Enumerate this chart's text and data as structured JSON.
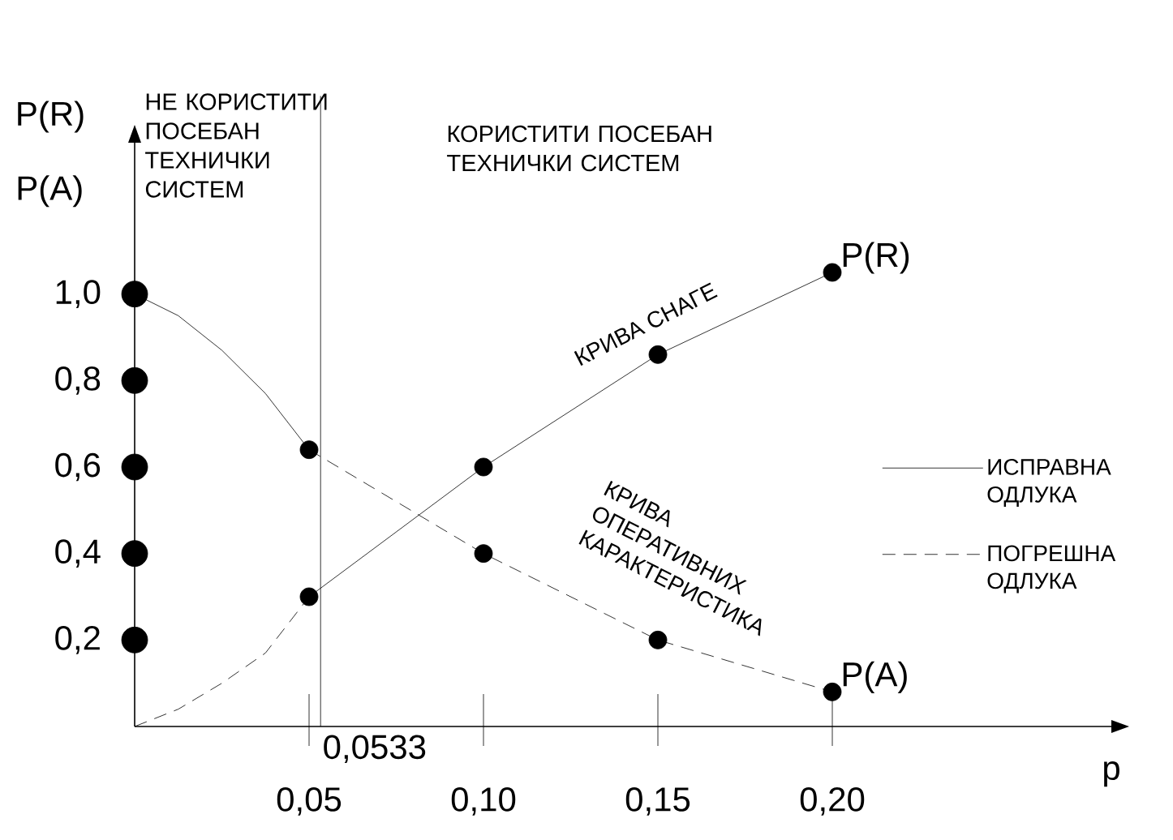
{
  "chart_data": {
    "type": "line",
    "xlabel": "p",
    "ylabel": "P(R)",
    "xlim": [
      0,
      0.28
    ],
    "ylim": [
      0,
      1.35
    ],
    "xticks": [
      {
        "value": 0.05,
        "label": "0,05"
      },
      {
        "value": 0.1,
        "label": "0,10"
      },
      {
        "value": 0.15,
        "label": "0,15"
      },
      {
        "value": 0.2,
        "label": "0,20"
      }
    ],
    "yticks": [
      {
        "value": 0.2,
        "label": "0,2"
      },
      {
        "value": 0.4,
        "label": "0,4"
      },
      {
        "value": 0.6,
        "label": "0,6"
      },
      {
        "value": 0.8,
        "label": "0,8"
      },
      {
        "value": 1.0,
        "label": "1,0"
      }
    ],
    "legend": "right",
    "ref_lines": [
      {
        "axis": "x",
        "value": 0.0533,
        "label": "0,0533",
        "color": "#000000"
      }
    ],
    "series": [
      {
        "name": "ИСПРАВНА ОДЛУКА",
        "color": "#000000",
        "line_style": "solid",
        "marker": "none",
        "x": [
          0,
          0.0125,
          0.025,
          0.0375,
          0.05
        ],
        "values": [
          1.0,
          0.95,
          0.87,
          0.77,
          0.64
        ]
      },
      {
        "color": "#000000",
        "line_style": "solid",
        "marker": "circle",
        "x": [
          0.05,
          0.1,
          0.15,
          0.2
        ],
        "values": [
          0.3,
          0.6,
          0.86,
          1.05
        ]
      },
      {
        "name": "ПОГРЕШНА ОДЛУКА",
        "color": "#000000",
        "line_style": "dashed",
        "marker": "none",
        "x": [
          0,
          0.0125,
          0.025,
          0.0375,
          0.05
        ],
        "values": [
          0,
          0.04,
          0.1,
          0.17,
          0.3
        ]
      },
      {
        "color": "#000000",
        "line_style": "dashed",
        "marker": "circle",
        "x": [
          0.05,
          0.1,
          0.15,
          0.2
        ],
        "values": [
          0.64,
          0.4,
          0.2,
          0.08
        ]
      },
      {
        "type": "scatter",
        "color": "#000000",
        "marker": "circle",
        "x": [
          0,
          0,
          0,
          0,
          0
        ],
        "values": [
          0.2,
          0.4,
          0.6,
          0.8,
          1.0
        ]
      }
    ],
    "annotations": [
      "P(A)",
      "НЕ КОРИСТИТИ ПОСЕБАН ТЕХНИЧКИ СИСТЕМ",
      "КОРИСТИТИ ПОСЕБАН ТЕХНИЧКИ СИСТЕМ",
      "КРИВА СНАГЕ",
      "КРИВА ОПЕРАТИВНИХ КАРАКТЕРИСТИКА",
      {
        "text": "P(R)",
        "x": 0.2,
        "y": 1.05
      },
      {
        "text": "P(A)",
        "x": 0.2,
        "y": 0.08
      }
    ]
  }
}
